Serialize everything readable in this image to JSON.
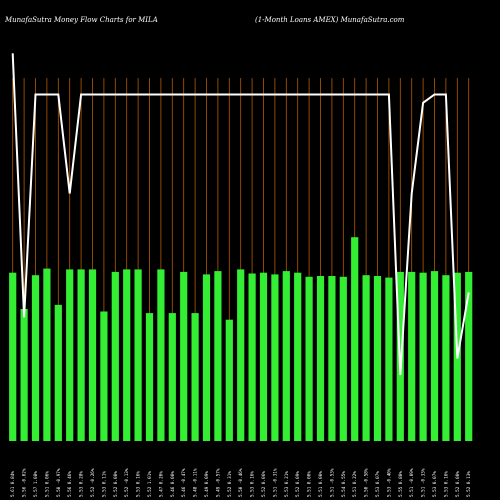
{
  "header": {
    "title": "MunafaSutra  Money Flow  Charts for MILA",
    "subtitle": "(1-Month Loans AMEX) MunafaSutra.com"
  },
  "colors": {
    "background": "#000000",
    "bar": "#33ee33",
    "grid": "#b35a00",
    "line": "#ffffff"
  },
  "chart_data": {
    "type": "bar",
    "title": "MunafaSutra  Money Flow  Charts for MILA",
    "subtitle": "(1-Month Loans AMEX) MunafaSutra.com",
    "categories": [
      "Tue 31 Dec 2024",
      "Fri 27 Dec 2024",
      "Tue 24 Dec 2024",
      "Mon 23 Dec 2024",
      "Fri 20 Dec 2024",
      "Thu 19 Dec 2024",
      "Wed 18 Dec 2024",
      "Tue 17 Dec 2024",
      "Mon 16 Dec 2024",
      "Fri 13 Dec 2024",
      "Thu 12 Dec 2024",
      "Wed 11 Dec 2024",
      "Tue 10 Dec 2024",
      "Mon 09 Dec 2024",
      "Fri 06 Dec 2024",
      "Thu 05 Dec 2024",
      "Wed 04 Dec 2024",
      "Tue 03 Dec 2024",
      "Mon 02 Dec 2024",
      "Fri 29 Nov 2024",
      "Wed 27 Nov 2024",
      "Tue 26 Nov 2024",
      "Mon 25 Nov 2024",
      "Fri 22 Nov 2024",
      "Thu 21 Nov 2024",
      "Wed 20 Nov 2024",
      "Tue 19 Nov 2024",
      "Mon 18 Nov 2024",
      "Fri 15 Nov 2024",
      "Thu 14 Nov 2024",
      "Wed 13 Nov 2024",
      "Tue 12 Nov 2024",
      "Mon 11 Nov 2024",
      "Fri 08 Nov 2024",
      "Thu 07 Nov 2024",
      "Wed 06 Nov 2024",
      "Tue 05 Nov 2024",
      "Mon 04 Nov 2024",
      "Fri 01 Nov 2024",
      "Thu 31 Oct 2024",
      "Wed 30 Oct 2024"
    ],
    "x_labels": [
      "5.61 0.84%",
      "5.56 -0.02%",
      "5.57 1.08%",
      "5.51 0.06%",
      "5.50 -0.97%",
      "5.56 0.46%",
      "5.53 0.28%",
      "5.52 -0.26%",
      "5.53 0.11%",
      "5.52 0.00%",
      "5.52 -0.13%",
      "5.53 0.16%",
      "5.52 1.01%",
      "5.47 0.20%",
      "5.46 0.00%",
      "5.46 -0.47%",
      "5.48 -0.11%",
      "5.49 0.09%",
      "5.49 -0.57%",
      "5.52 0.31%",
      "5.50 -0.46%",
      "5.53 0.16%",
      "5.52 0.06%",
      "5.51 -0.31%",
      "5.53 0.21%",
      "5.52 0.09%",
      "5.51 0.00%",
      "5.51 0.00%",
      "5.51 -0.53%",
      "5.54 0.55%",
      "5.51 0.22%",
      "5.50 -0.58%",
      "5.53 0.07%",
      "5.53 -0.40%",
      "5.55 0.80%",
      "5.51 -0.09%",
      "5.51 -0.33%",
      "5.53 0.07%",
      "5.53 0.16%",
      "5.52 0.00%",
      "5.52 0.13%"
    ],
    "values": [
      204,
      160,
      201,
      209,
      165,
      208,
      208,
      208,
      157,
      205,
      208,
      208,
      155,
      208,
      155,
      205,
      155,
      202,
      206,
      147,
      208,
      203,
      204,
      202,
      206,
      204,
      199,
      200,
      200,
      199,
      247,
      201,
      200,
      198,
      205,
      205,
      204,
      206,
      201,
      204,
      205
    ],
    "ylim": [
      0,
      440
    ],
    "grid": true,
    "line_overlay": true
  }
}
